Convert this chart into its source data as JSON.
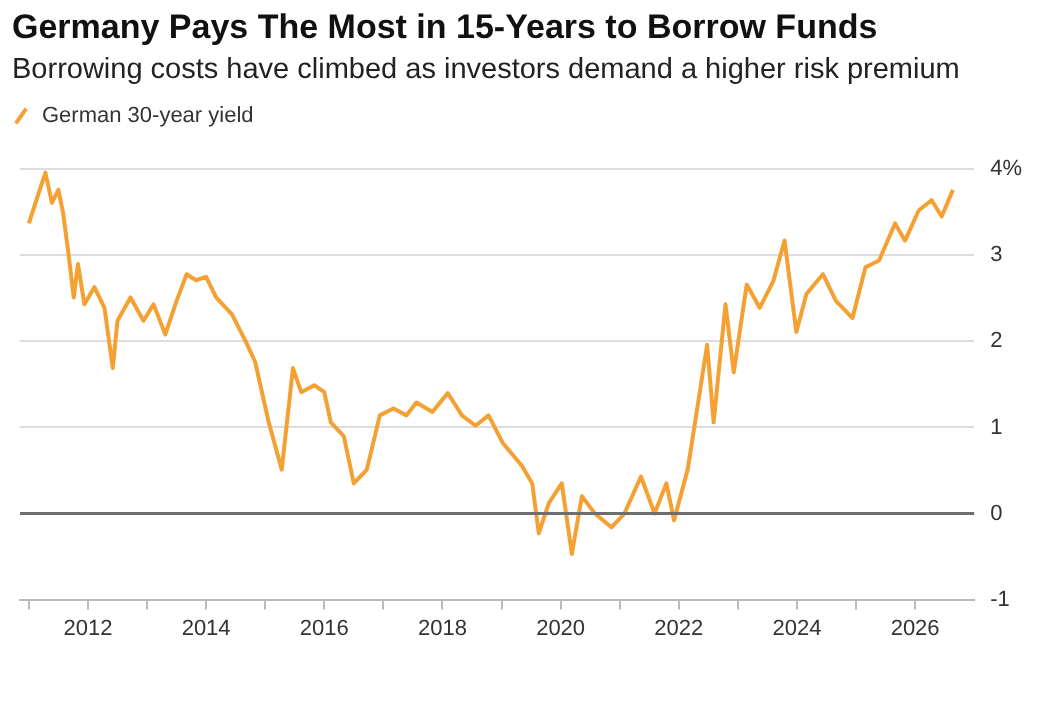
{
  "chart_data": {
    "type": "line",
    "title": "Germany Pays The Most in 15-Years to Borrow Funds",
    "subtitle": "Borrowing costs have climbed as investors demand a higher risk premium",
    "legend": "top left",
    "grid": "y",
    "marker": "none",
    "line_style": "solid",
    "xlim": [
      2010.85,
      2027.0
    ],
    "xticks": [
      {
        "value": 2011,
        "label": null
      },
      2012,
      {
        "value": 2013,
        "label": null
      },
      2014,
      {
        "value": 2015,
        "label": null
      },
      2016,
      {
        "value": 2017,
        "label": null
      },
      2018,
      {
        "value": 2019,
        "label": null
      },
      2020,
      {
        "value": 2021,
        "label": null
      },
      2022,
      {
        "value": 2023,
        "label": null
      },
      2024,
      {
        "value": 2025,
        "label": null
      },
      2026
    ],
    "ylim": [
      -1,
      4
    ],
    "yticks": [
      -1,
      0,
      1,
      2,
      3,
      {
        "value": 4,
        "label": "4%"
      }
    ],
    "ref_lines": [
      {
        "axis": "y",
        "value": 0,
        "color": "#6e6e6e"
      }
    ],
    "series": [
      {
        "name": "German 30-year yield",
        "color": "#f5a033",
        "x": [
          2011.0,
          2011.17,
          2011.28,
          2011.39,
          2011.5,
          2011.58,
          2011.67,
          2011.76,
          2011.83,
          2011.94,
          2012.11,
          2012.28,
          2012.42,
          2012.5,
          2012.72,
          2012.94,
          2013.11,
          2013.31,
          2013.5,
          2013.67,
          2013.83,
          2014.0,
          2014.17,
          2014.44,
          2014.67,
          2014.83,
          2015.06,
          2015.28,
          2015.47,
          2015.61,
          2015.83,
          2016.0,
          2016.11,
          2016.33,
          2016.5,
          2016.72,
          2016.94,
          2017.17,
          2017.39,
          2017.56,
          2017.83,
          2018.09,
          2018.33,
          2018.56,
          2018.78,
          2019.02,
          2019.35,
          2019.52,
          2019.63,
          2019.8,
          2020.02,
          2020.19,
          2020.36,
          2020.58,
          2020.86,
          2021.08,
          2021.36,
          2021.59,
          2021.79,
          2021.92,
          2022.15,
          2022.31,
          2022.48,
          2022.59,
          2022.79,
          2022.93,
          2023.15,
          2023.37,
          2023.6,
          2023.79,
          2023.99,
          2024.16,
          2024.44,
          2024.66,
          2024.94,
          2025.16,
          2025.39,
          2025.66,
          2025.83,
          2026.06,
          2026.28,
          2026.45,
          2026.64
        ],
        "values": [
          3.37,
          3.73,
          3.96,
          3.61,
          3.76,
          3.49,
          3.02,
          2.51,
          2.9,
          2.43,
          2.63,
          2.39,
          1.69,
          2.24,
          2.51,
          2.24,
          2.43,
          2.08,
          2.47,
          2.78,
          2.71,
          2.75,
          2.51,
          2.31,
          2.0,
          1.76,
          1.06,
          0.51,
          1.69,
          1.41,
          1.49,
          1.41,
          1.06,
          0.9,
          0.35,
          0.51,
          1.14,
          1.22,
          1.14,
          1.29,
          1.18,
          1.4,
          1.14,
          1.02,
          1.14,
          0.82,
          0.55,
          0.35,
          -0.23,
          0.12,
          0.35,
          -0.47,
          0.2,
          0,
          -0.16,
          0,
          0.43,
          0,
          0.35,
          -0.08,
          0.51,
          1.21,
          1.96,
          1.06,
          2.43,
          1.64,
          2.66,
          2.39,
          2.7,
          3.17,
          2.11,
          2.55,
          2.78,
          2.47,
          2.27,
          2.86,
          2.94,
          3.37,
          3.17,
          3.52,
          3.64,
          3.45,
          3.76
        ]
      }
    ]
  }
}
